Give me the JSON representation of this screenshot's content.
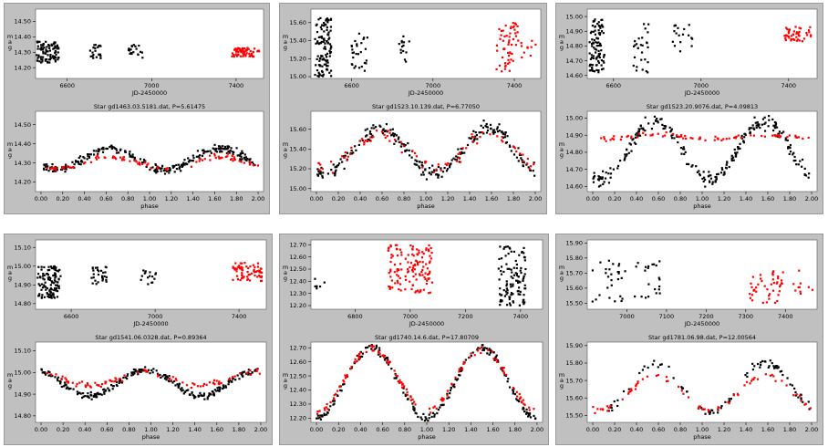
{
  "colors": {
    "panel_bg": "#c0c0c0",
    "plot_bg": "#ffffff",
    "black_points": "#000000",
    "red_points": "#ff0000"
  },
  "chart_data": [
    {
      "panel": 1,
      "top": {
        "type": "scatter",
        "xlabel": "JD-2450000",
        "ylabel": "m\na\ng",
        "xlim": [
          6450,
          7530
        ],
        "ylim": [
          14.58,
          14.13
        ],
        "xticks": [
          6600,
          7000,
          7400
        ],
        "yticks": [
          14.2,
          14.3,
          14.4,
          14.5
        ],
        "clusters": [
          [
            6450,
            6560,
            14.23,
            14.37,
            95,
            "k"
          ],
          [
            6700,
            6760,
            14.26,
            14.35,
            22,
            "k"
          ],
          [
            6890,
            6960,
            14.26,
            14.35,
            22,
            "k"
          ],
          [
            7380,
            7510,
            14.27,
            14.33,
            65,
            "r"
          ]
        ]
      },
      "bottom": {
        "type": "scatter",
        "title": "Star gd1463.03.5181.dat, P=5.61475",
        "xlabel": "phase",
        "ylabel": "m\na\ng",
        "xlim": [
          -0.05,
          2.05
        ],
        "ylim": [
          14.57,
          14.15
        ],
        "yticks": [
          14.2,
          14.3,
          14.4,
          14.5
        ],
        "xticks": [
          0,
          0.2,
          0.4,
          0.6,
          0.8,
          1.0,
          1.2,
          1.4,
          1.6,
          1.8,
          2.0
        ],
        "xticklabels": [
          "0.00",
          "0.20",
          "0.40",
          "0.60",
          "0.80",
          "1.00",
          "1.20",
          "1.40",
          "1.60",
          "1.80",
          "2.00"
        ],
        "black": {
          "mean": 14.32,
          "amp": 0.055,
          "phi": 0.15,
          "noise": 0.015,
          "n": 260
        },
        "red": {
          "mean": 14.3,
          "amp": 0.03,
          "phi": 0.15,
          "noise": 0.012,
          "n": 90
        }
      }
    },
    {
      "panel": 2,
      "top": {
        "type": "scatter",
        "xlabel": "JD-2450000",
        "ylabel": "m\na\ng",
        "xlim": [
          6400,
          7530
        ],
        "ylim": [
          15.75,
          14.98
        ],
        "xticks": [
          6600,
          7000,
          7400
        ],
        "yticks": [
          15.0,
          15.2,
          15.4,
          15.6
        ],
        "clusters": [
          [
            6420,
            6500,
            15.0,
            15.65,
            110,
            "k"
          ],
          [
            6600,
            6680,
            15.05,
            15.55,
            28,
            "k"
          ],
          [
            6830,
            6890,
            15.15,
            15.45,
            14,
            "k"
          ],
          [
            7310,
            7420,
            15.05,
            15.62,
            55,
            "r"
          ],
          [
            7430,
            7510,
            15.2,
            15.4,
            10,
            "r"
          ]
        ]
      },
      "bottom": {
        "type": "scatter",
        "title": "Star gd1523.10.139.dat, P=6.77050",
        "xlabel": "phase",
        "ylabel": "m\na\ng",
        "xlim": [
          -0.05,
          2.05
        ],
        "ylim": [
          15.78,
          14.97
        ],
        "yticks": [
          15.0,
          15.2,
          15.4,
          15.6
        ],
        "xticks": [
          0,
          0.2,
          0.4,
          0.6,
          0.8,
          1.0,
          1.2,
          1.4,
          1.6,
          1.8,
          2.0
        ],
        "xticklabels": [
          "0.00",
          "0.20",
          "0.40",
          "0.60",
          "0.80",
          "1.00",
          "1.20",
          "1.40",
          "1.60",
          "1.80",
          "2.00"
        ],
        "black": {
          "mean": 15.38,
          "amp": 0.23,
          "phi": 0.08,
          "noise": 0.05,
          "n": 230
        },
        "red": {
          "mean": 15.38,
          "amp": 0.18,
          "phi": 0.08,
          "noise": 0.06,
          "n": 80
        }
      }
    },
    {
      "panel": 3,
      "top": {
        "type": "scatter",
        "xlabel": "JD-2450000",
        "ylabel": "m\na\ng",
        "xlim": [
          6480,
          7530
        ],
        "ylim": [
          15.05,
          14.58
        ],
        "xticks": [
          6600,
          7000,
          7400
        ],
        "yticks": [
          14.6,
          14.7,
          14.8,
          14.9,
          15.0
        ],
        "clusters": [
          [
            6490,
            6560,
            14.6,
            14.98,
            95,
            "k"
          ],
          [
            6680,
            6760,
            14.62,
            14.95,
            28,
            "k"
          ],
          [
            6870,
            6960,
            14.75,
            14.95,
            18,
            "k"
          ],
          [
            7380,
            7510,
            14.83,
            14.93,
            45,
            "r"
          ]
        ]
      },
      "bottom": {
        "type": "scatter",
        "title": "Star gd1523.20.9076.dat, P=4.09813",
        "xlabel": "phase",
        "ylabel": "m\na\ng",
        "xlim": [
          -0.05,
          2.05
        ],
        "ylim": [
          15.04,
          14.57
        ],
        "yticks": [
          14.6,
          14.7,
          14.8,
          14.9,
          15.0
        ],
        "xticks": [
          0,
          0.2,
          0.4,
          0.6,
          0.8,
          1.0,
          1.2,
          1.4,
          1.6,
          1.8,
          2.0
        ],
        "xticklabels": [
          "0.00",
          "0.20",
          "0.40",
          "0.60",
          "0.80",
          "1.00",
          "1.20",
          "1.40",
          "1.60",
          "1.80",
          "2.00"
        ],
        "black": {
          "mean": 14.81,
          "amp": 0.17,
          "phi": 0.07,
          "noise": 0.03,
          "n": 240
        },
        "red": {
          "mean": 14.89,
          "amp": 0.01,
          "phi": 0.07,
          "noise": 0.012,
          "n": 80
        }
      }
    },
    {
      "panel": 4,
      "top": {
        "type": "scatter",
        "xlabel": "JD-2450000",
        "ylabel": "m\na\ng",
        "xlim": [
          6430,
          7530
        ],
        "ylim": [
          15.14,
          14.77
        ],
        "xticks": [
          6600,
          7000,
          7400
        ],
        "yticks": [
          14.8,
          14.9,
          15.0,
          15.1
        ],
        "clusters": [
          [
            6440,
            6550,
            14.83,
            15.0,
            110,
            "k"
          ],
          [
            6690,
            6770,
            14.9,
            15.0,
            28,
            "k"
          ],
          [
            6930,
            7010,
            14.9,
            14.98,
            16,
            "k"
          ],
          [
            7370,
            7510,
            14.92,
            15.02,
            65,
            "r"
          ]
        ]
      },
      "bottom": {
        "type": "scatter",
        "title": "Star gd1541.06.0328.dat, P=0.89364",
        "xlabel": "phase",
        "ylabel": "m\na\ng",
        "xlim": [
          -0.05,
          2.05
        ],
        "ylim": [
          15.14,
          14.77
        ],
        "yticks": [
          14.8,
          14.9,
          15.0,
          15.1
        ],
        "xticks": [
          0,
          0.2,
          0.4,
          0.6,
          0.8,
          1.0,
          1.2,
          1.4,
          1.6,
          1.8,
          2.0
        ],
        "xticklabels": [
          "0.00",
          "0.20",
          "0.40",
          "0.60",
          "0.80",
          "1.00",
          "1.20",
          "1.40",
          "1.60",
          "1.80",
          "2.00"
        ],
        "black": {
          "mean": 14.95,
          "amp": 0.06,
          "phi": 0.45,
          "noise": 0.012,
          "n": 240
        },
        "red": {
          "mean": 14.97,
          "amp": 0.03,
          "phi": 0.45,
          "noise": 0.01,
          "n": 90
        }
      }
    },
    {
      "panel": 5,
      "top": {
        "type": "scatter",
        "xlabel": "JD-2450000",
        "ylabel": "m\na\ng",
        "xlim": [
          6640,
          7480
        ],
        "ylim": [
          12.74,
          12.17
        ],
        "xticks": [
          6800,
          7000,
          7200,
          7400
        ],
        "yticks": [
          12.2,
          12.3,
          12.4,
          12.5,
          12.6,
          12.7
        ],
        "clusters": [
          [
            6650,
            6700,
            12.33,
            12.5,
            6,
            "k"
          ],
          [
            6920,
            7080,
            12.3,
            12.7,
            130,
            "r"
          ],
          [
            7320,
            7420,
            12.2,
            12.7,
            110,
            "k"
          ]
        ]
      },
      "bottom": {
        "type": "scatter",
        "title": "Star gd1740.14.6.dat, P=17.80709",
        "xlabel": "phase",
        "ylabel": "m\na\ng",
        "xlim": [
          -0.05,
          2.05
        ],
        "ylim": [
          12.74,
          12.17
        ],
        "yticks": [
          12.2,
          12.3,
          12.4,
          12.5,
          12.6,
          12.7
        ],
        "xticks": [
          0,
          0.2,
          0.4,
          0.6,
          0.8,
          1.0,
          1.2,
          1.4,
          1.6,
          1.8,
          2.0
        ],
        "xticklabels": [
          "0.00",
          "0.20",
          "0.40",
          "0.60",
          "0.80",
          "1.00",
          "1.20",
          "1.40",
          "1.60",
          "1.80",
          "2.00"
        ],
        "black": {
          "mean": 12.45,
          "amp": 0.25,
          "phi": 0.0,
          "noise": 0.02,
          "n": 200
        },
        "red": {
          "mean": 12.47,
          "amp": 0.22,
          "phi": 0.0,
          "noise": 0.02,
          "n": 130
        }
      }
    },
    {
      "panel": 6,
      "top": {
        "type": "scatter",
        "xlabel": "JD-2450000",
        "ylabel": "m\na\ng",
        "xlim": [
          6900,
          7480
        ],
        "ylim": [
          15.92,
          15.46
        ],
        "xticks": [
          7000,
          7100,
          7200,
          7300,
          7400
        ],
        "yticks": [
          15.5,
          15.6,
          15.7,
          15.8,
          15.9
        ],
        "clusters": [
          [
            6910,
            7000,
            15.5,
            15.8,
            28,
            "k"
          ],
          [
            7020,
            7090,
            15.5,
            15.78,
            22,
            "k"
          ],
          [
            7310,
            7400,
            15.5,
            15.72,
            45,
            "r"
          ],
          [
            7420,
            7470,
            15.55,
            15.72,
            10,
            "r"
          ]
        ]
      },
      "bottom": {
        "type": "scatter",
        "title": "Star gd1781.06.98.dat, P=12.00564",
        "xlabel": "phase",
        "ylabel": "m\na\ng",
        "xlim": [
          -0.05,
          2.05
        ],
        "ylim": [
          15.92,
          15.46
        ],
        "yticks": [
          15.5,
          15.6,
          15.7,
          15.8,
          15.9
        ],
        "xticks": [
          0,
          0.2,
          0.4,
          0.6,
          0.8,
          1.0,
          1.2,
          1.4,
          1.6,
          1.8,
          2.0
        ],
        "xticklabels": [
          "0.00",
          "0.20",
          "0.40",
          "0.60",
          "0.80",
          "1.00",
          "1.20",
          "1.40",
          "1.60",
          "1.80",
          "2.00"
        ],
        "black": {
          "mean": 15.66,
          "amp": 0.14,
          "phi": 0.08,
          "noise": 0.02,
          "n": 90
        },
        "red": {
          "mean": 15.63,
          "amp": 0.1,
          "phi": 0.08,
          "noise": 0.015,
          "n": 70
        }
      }
    }
  ]
}
